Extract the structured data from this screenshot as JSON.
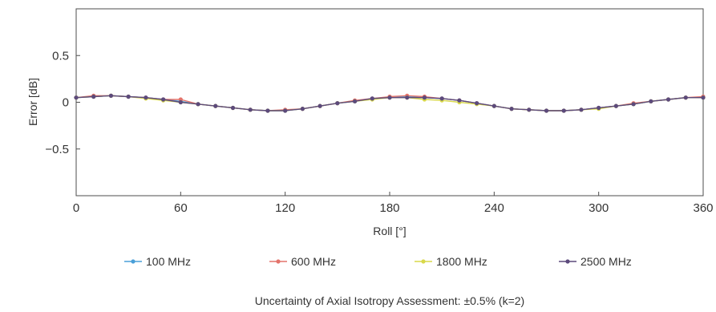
{
  "chart_data": {
    "type": "line",
    "xlabel": "Roll [°]",
    "ylabel": "Error [dB]",
    "xlim": [
      0,
      360
    ],
    "ylim": [
      -1,
      1
    ],
    "xticks": [
      0,
      60,
      120,
      180,
      240,
      300,
      360
    ],
    "xtick_labels": [
      "0",
      "60",
      "120",
      "180",
      "240",
      "300",
      "360"
    ],
    "yticks": [
      0.5,
      0,
      -0.5
    ],
    "ytick_labels": [
      "0.5",
      "0",
      "−0.5"
    ],
    "grid": false,
    "legend_position": "bottom",
    "x": [
      0,
      10,
      20,
      30,
      40,
      50,
      60,
      70,
      80,
      90,
      100,
      110,
      120,
      130,
      140,
      150,
      160,
      170,
      180,
      190,
      200,
      210,
      220,
      230,
      240,
      250,
      260,
      270,
      280,
      290,
      300,
      310,
      320,
      330,
      340,
      350,
      360
    ],
    "series": [
      {
        "name": "100 MHz",
        "color": "#4a9fd8",
        "values": [
          0.05,
          0.06,
          0.07,
          0.06,
          0.05,
          0.03,
          0.01,
          -0.02,
          -0.04,
          -0.06,
          -0.08,
          -0.09,
          -0.09,
          -0.07,
          -0.04,
          -0.01,
          0.01,
          0.04,
          0.05,
          0.06,
          0.05,
          0.04,
          0.02,
          -0.01,
          -0.04,
          -0.07,
          -0.08,
          -0.09,
          -0.09,
          -0.08,
          -0.06,
          -0.04,
          -0.02,
          0.01,
          0.03,
          0.05,
          0.05
        ]
      },
      {
        "name": "600 MHz",
        "color": "#e3736b",
        "values": [
          0.05,
          0.07,
          0.07,
          0.06,
          0.05,
          0.03,
          0.03,
          -0.02,
          -0.04,
          -0.06,
          -0.08,
          -0.09,
          -0.08,
          -0.07,
          -0.04,
          -0.01,
          0.02,
          0.04,
          0.06,
          0.07,
          0.06,
          0.04,
          0.02,
          -0.01,
          -0.04,
          -0.07,
          -0.08,
          -0.09,
          -0.09,
          -0.08,
          -0.06,
          -0.04,
          -0.01,
          0.01,
          0.03,
          0.05,
          0.06
        ]
      },
      {
        "name": "1800 MHz",
        "color": "#d8d84a",
        "values": [
          0.05,
          0.06,
          0.07,
          0.06,
          0.04,
          0.02,
          0.0,
          -0.02,
          -0.04,
          -0.06,
          -0.08,
          -0.09,
          -0.09,
          -0.07,
          -0.04,
          -0.01,
          0.01,
          0.03,
          0.05,
          0.05,
          0.03,
          0.02,
          0.0,
          -0.02,
          -0.04,
          -0.07,
          -0.08,
          -0.09,
          -0.09,
          -0.08,
          -0.07,
          -0.04,
          -0.02,
          0.01,
          0.03,
          0.05,
          0.05
        ]
      },
      {
        "name": "2500 MHz",
        "color": "#5c4a7c",
        "values": [
          0.05,
          0.06,
          0.07,
          0.06,
          0.05,
          0.03,
          0.0,
          -0.02,
          -0.04,
          -0.06,
          -0.08,
          -0.09,
          -0.09,
          -0.07,
          -0.04,
          -0.01,
          0.01,
          0.04,
          0.05,
          0.05,
          0.05,
          0.04,
          0.02,
          -0.01,
          -0.04,
          -0.07,
          -0.08,
          -0.09,
          -0.09,
          -0.08,
          -0.06,
          -0.04,
          -0.02,
          0.01,
          0.03,
          0.05,
          0.05
        ]
      }
    ]
  },
  "caption": "Uncertainty of Axial Isotropy Assessment: ±0.5% (k=2)"
}
